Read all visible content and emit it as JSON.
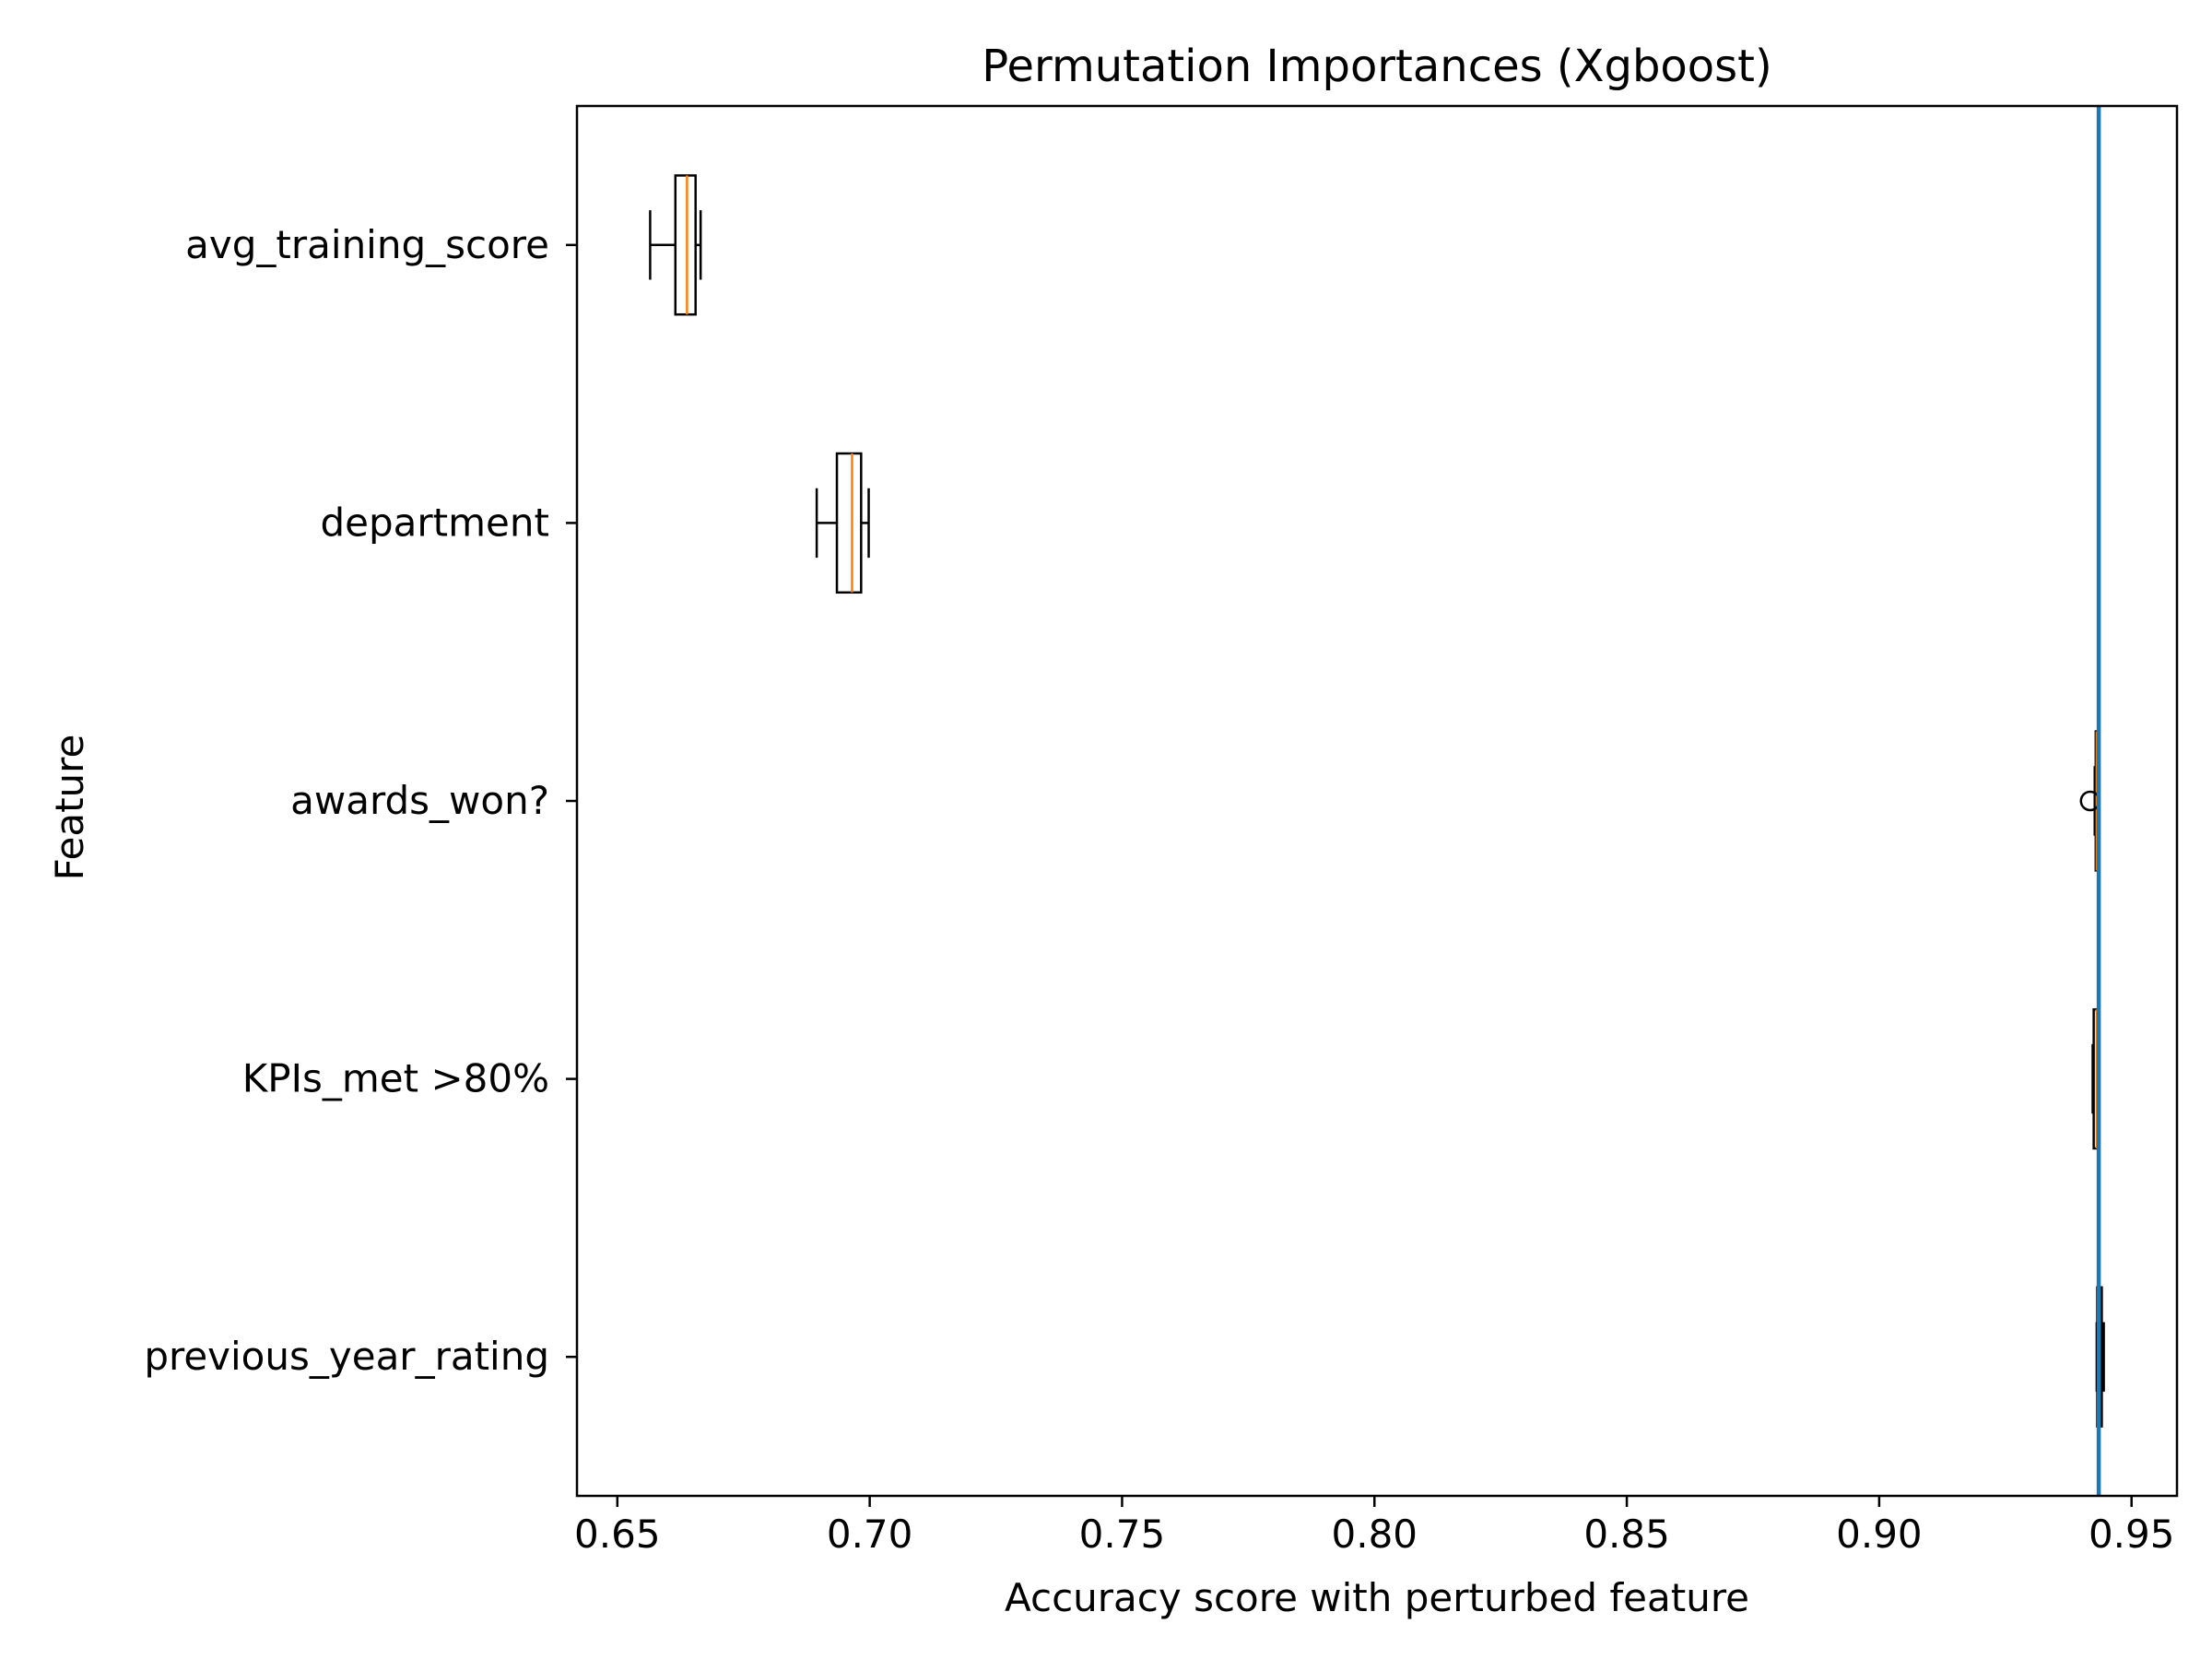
{
  "chart_data": {
    "type": "boxplot",
    "orientation": "horizontal",
    "title": "Permutation Importances (Xgboost)",
    "xlabel": "Accuracy score with perturbed feature",
    "ylabel": "Feature",
    "xlim": [
      0.642,
      0.959
    ],
    "xticks": [
      0.65,
      0.7,
      0.75,
      0.8,
      0.85,
      0.9,
      0.95
    ],
    "xtick_labels": [
      "0.65",
      "0.70",
      "0.75",
      "0.80",
      "0.85",
      "0.90",
      "0.95"
    ],
    "grid": false,
    "legend": "none",
    "baseline": {
      "value": 0.9435,
      "color": "#1f77b4"
    },
    "colors": {
      "box": "#000000",
      "median": "#ff7f0e"
    },
    "categories": [
      "avg_training_score",
      "department",
      "awards_won?",
      "KPIs_met >80%",
      "previous_year_rating"
    ],
    "boxes": [
      {
        "label": "avg_training_score",
        "whisker_low": 0.6565,
        "q1": 0.6615,
        "median": 0.6638,
        "q3": 0.6655,
        "whisker_high": 0.6665,
        "fliers": []
      },
      {
        "label": "department",
        "whisker_low": 0.6895,
        "q1": 0.6935,
        "median": 0.6965,
        "q3": 0.6983,
        "whisker_high": 0.6998,
        "fliers": []
      },
      {
        "label": "awards_won?",
        "whisker_low": 0.9427,
        "q1": 0.9429,
        "median": 0.9431,
        "q3": 0.9432,
        "whisker_high": 0.9433,
        "fliers": [
          0.9418
        ]
      },
      {
        "label": "KPIs_met >80%",
        "whisker_low": 0.9423,
        "q1": 0.9425,
        "median": 0.9431,
        "q3": 0.9433,
        "whisker_high": 0.9434,
        "fliers": []
      },
      {
        "label": "previous_year_rating",
        "whisker_low": 0.9431,
        "q1": 0.9432,
        "median": 0.9434,
        "q3": 0.9441,
        "whisker_high": 0.9445,
        "fliers": []
      }
    ]
  }
}
